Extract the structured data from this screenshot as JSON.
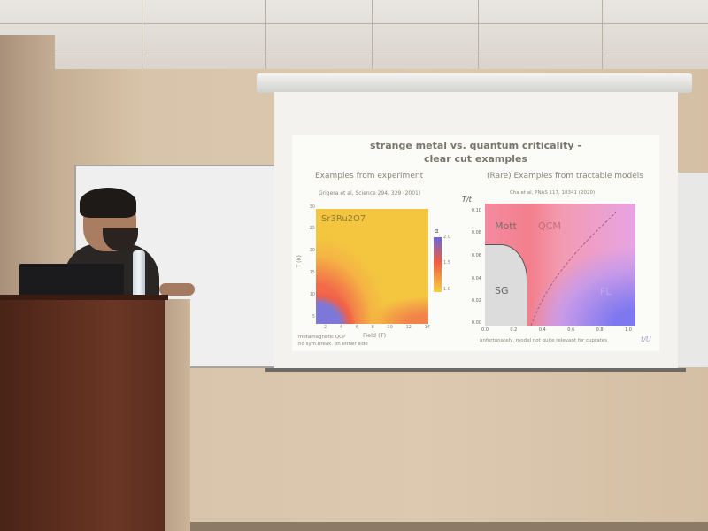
{
  "slide": {
    "title_line1": "strange metal vs. quantum criticality -",
    "title_line2": "clear cut examples",
    "left": {
      "heading": "Examples from experiment",
      "citation": "Grigera et al, Science 294, 329 (2001)",
      "material": "Sr3Ru2O7",
      "y_label": "T (K)",
      "y_ticks": [
        "30",
        "25",
        "20",
        "15",
        "10",
        "5"
      ],
      "x_label": "Field (T)",
      "x_ticks": [
        "2",
        "4",
        "6",
        "8",
        "10",
        "12",
        "14"
      ],
      "colorbar_label": "α",
      "colorbar_ticks": [
        "2.0",
        "1.5",
        "1.0"
      ],
      "note1": "metamagnetic QCP",
      "note2": "no sym.break. on either side"
    },
    "right": {
      "heading": "(Rare) Examples from tractable models",
      "citation": "Cha et al, PNAS 117, 18341 (2020)",
      "y_label": "T/t",
      "y_ticks": [
        "0.10",
        "0.08",
        "0.06",
        "0.04",
        "0.02",
        "0.00"
      ],
      "x_label": "t/U",
      "x_ticks": [
        "0.0",
        "0.2",
        "0.4",
        "0.6",
        "0.8",
        "1.0"
      ],
      "regions": [
        "Mott",
        "QCM",
        "SG",
        "FL"
      ],
      "note": "unfortunately, model not quite relevant for cuprates"
    }
  }
}
